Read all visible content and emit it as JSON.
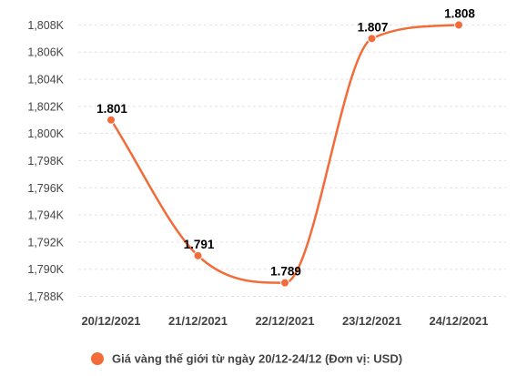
{
  "chart_data": {
    "type": "line",
    "categories": [
      "20/12/2021",
      "21/12/2021",
      "22/12/2021",
      "23/12/2021",
      "24/12/2021"
    ],
    "series": [
      {
        "name": "Giá vàng thế giới từ ngày 20/12-24/12 (Đơn vị: USD)",
        "values": [
          1801,
          1791,
          1789,
          1807,
          1808
        ],
        "data_labels": [
          "1.801",
          "1.791",
          "1.789",
          "1.807",
          "1.808"
        ],
        "color": "#f26b38"
      }
    ],
    "y_ticks": [
      1788,
      1790,
      1792,
      1794,
      1796,
      1798,
      1800,
      1802,
      1804,
      1806,
      1808
    ],
    "y_tick_labels": [
      "1,788K",
      "1,790K",
      "1,792K",
      "1,794K",
      "1,796K",
      "1,798K",
      "1,800K",
      "1,802K",
      "1,804K",
      "1,806K",
      "1,808K"
    ],
    "ylim": [
      1787.5,
      1808.9
    ],
    "grid": true,
    "grid_style": "dashed",
    "smooth": true,
    "legend": "bottom",
    "title": "",
    "xlabel": "",
    "ylabel": ""
  },
  "legend": {
    "label": "Giá vàng thế giới từ ngày 20/12-24/12 (Đơn vị: USD)"
  }
}
